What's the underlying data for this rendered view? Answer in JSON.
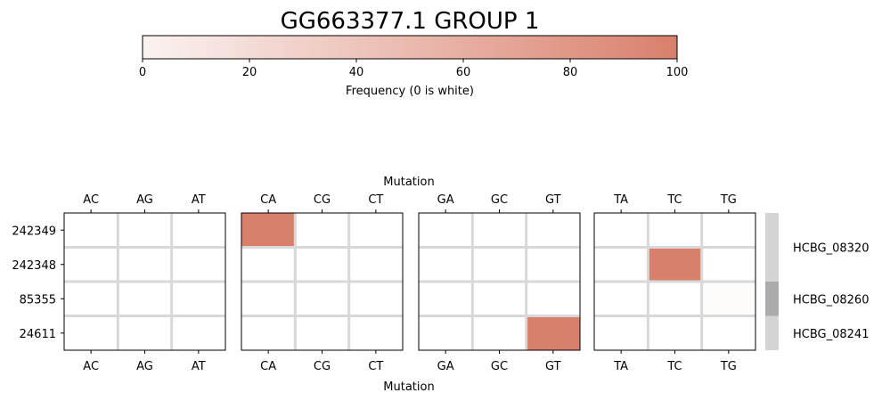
{
  "chart_data": {
    "type": "heatmap",
    "title": "GG663377.1 GROUP 1",
    "colorbar": {
      "label": "Frequency (0 is white)",
      "min": 0,
      "max": 100,
      "ticks": [
        "0",
        "20",
        "40",
        "60",
        "80",
        "100"
      ],
      "color_low": "#fbf3f1",
      "color_high": "#d9806c"
    },
    "xlabel": "Mutation",
    "rows": [
      "242349",
      "242348",
      "85355",
      "24611"
    ],
    "panels": [
      {
        "columns": [
          "AC",
          "AG",
          "AT"
        ],
        "values": [
          [
            0,
            0,
            0
          ],
          [
            0,
            0,
            0
          ],
          [
            0,
            0,
            0
          ],
          [
            0,
            0,
            0
          ]
        ]
      },
      {
        "columns": [
          "CA",
          "CG",
          "CT"
        ],
        "values": [
          [
            100,
            0,
            0
          ],
          [
            0,
            0,
            0
          ],
          [
            0,
            0,
            0
          ],
          [
            0,
            0,
            0
          ]
        ]
      },
      {
        "columns": [
          "GA",
          "GC",
          "GT"
        ],
        "values": [
          [
            0,
            0,
            0
          ],
          [
            0,
            0,
            0
          ],
          [
            0,
            0,
            0
          ],
          [
            0,
            0,
            100
          ]
        ]
      },
      {
        "columns": [
          "TA",
          "TC",
          "TG"
        ],
        "values": [
          [
            0,
            0,
            0
          ],
          [
            0,
            100,
            0
          ],
          [
            0,
            0,
            3
          ],
          [
            0,
            0,
            0
          ]
        ]
      }
    ],
    "gene_annotations": [
      {
        "label": "HCBG_08320",
        "rows": [
          0,
          1
        ],
        "color": "#d4d4d4"
      },
      {
        "label": "HCBG_08260",
        "rows": [
          2
        ],
        "color": "#ababab"
      },
      {
        "label": "HCBG_08241",
        "rows": [
          3
        ],
        "color": "#d4d4d4"
      }
    ],
    "grid_color": "#d8d8d8"
  }
}
